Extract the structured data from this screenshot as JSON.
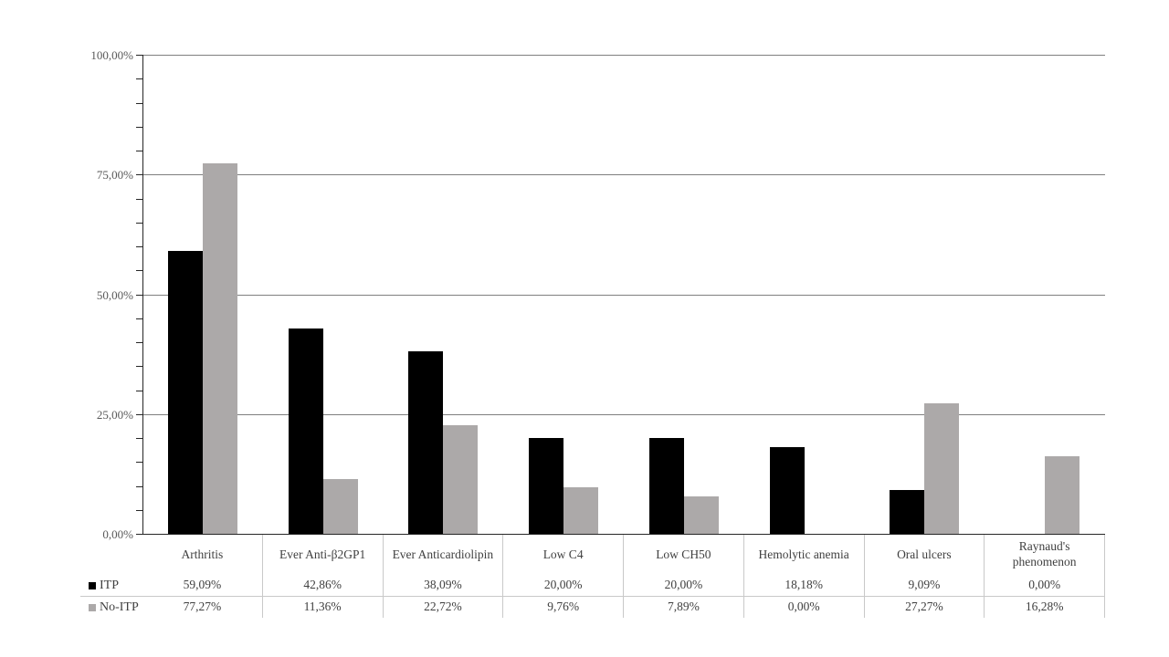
{
  "colors": {
    "background": "#ffffff",
    "gridline": "#7f7f7f",
    "axis": "#262626",
    "table_border": "#c9c9c9",
    "axis_label_text": "#595959",
    "table_text": "#404040"
  },
  "chart_data": {
    "type": "bar",
    "title": "",
    "xlabel": "",
    "ylabel": "",
    "categories": [
      "Arthritis",
      "Ever Anti-β2GP1",
      "Ever Anticardiolipin",
      "Low C4",
      "Low CH50",
      "Hemolytic anemia",
      "Oral ulcers",
      "Raynaud's phenomenon"
    ],
    "series": [
      {
        "name": "ITP",
        "marker_color": "#000000",
        "values": [
          59.09,
          42.86,
          38.09,
          20.0,
          20.0,
          18.18,
          9.09,
          0.0
        ],
        "display_values": [
          "59,09%",
          "42,86%",
          "38,09%",
          "20,00%",
          "20,00%",
          "18,18%",
          "9,09%",
          "0,00%"
        ]
      },
      {
        "name": "No-ITP",
        "marker_color": "#ACA9A9",
        "values": [
          77.27,
          11.36,
          22.72,
          9.76,
          7.89,
          0.0,
          27.27,
          16.28
        ],
        "display_values": [
          "77,27%",
          "11,36%",
          "22,72%",
          "9,76%",
          "7,89%",
          "0,00%",
          "27,27%",
          "16,28%"
        ]
      }
    ],
    "y_axis": {
      "min": 0,
      "max": 100,
      "major_tick_step": 25,
      "minor_tick_step": 5,
      "major_tick_labels": [
        "100,00%",
        "75,00%",
        "50,00%",
        "25,00%",
        "0,00%"
      ],
      "grid": true
    },
    "legend_position": "data-table-left",
    "data_table_shown": true
  }
}
